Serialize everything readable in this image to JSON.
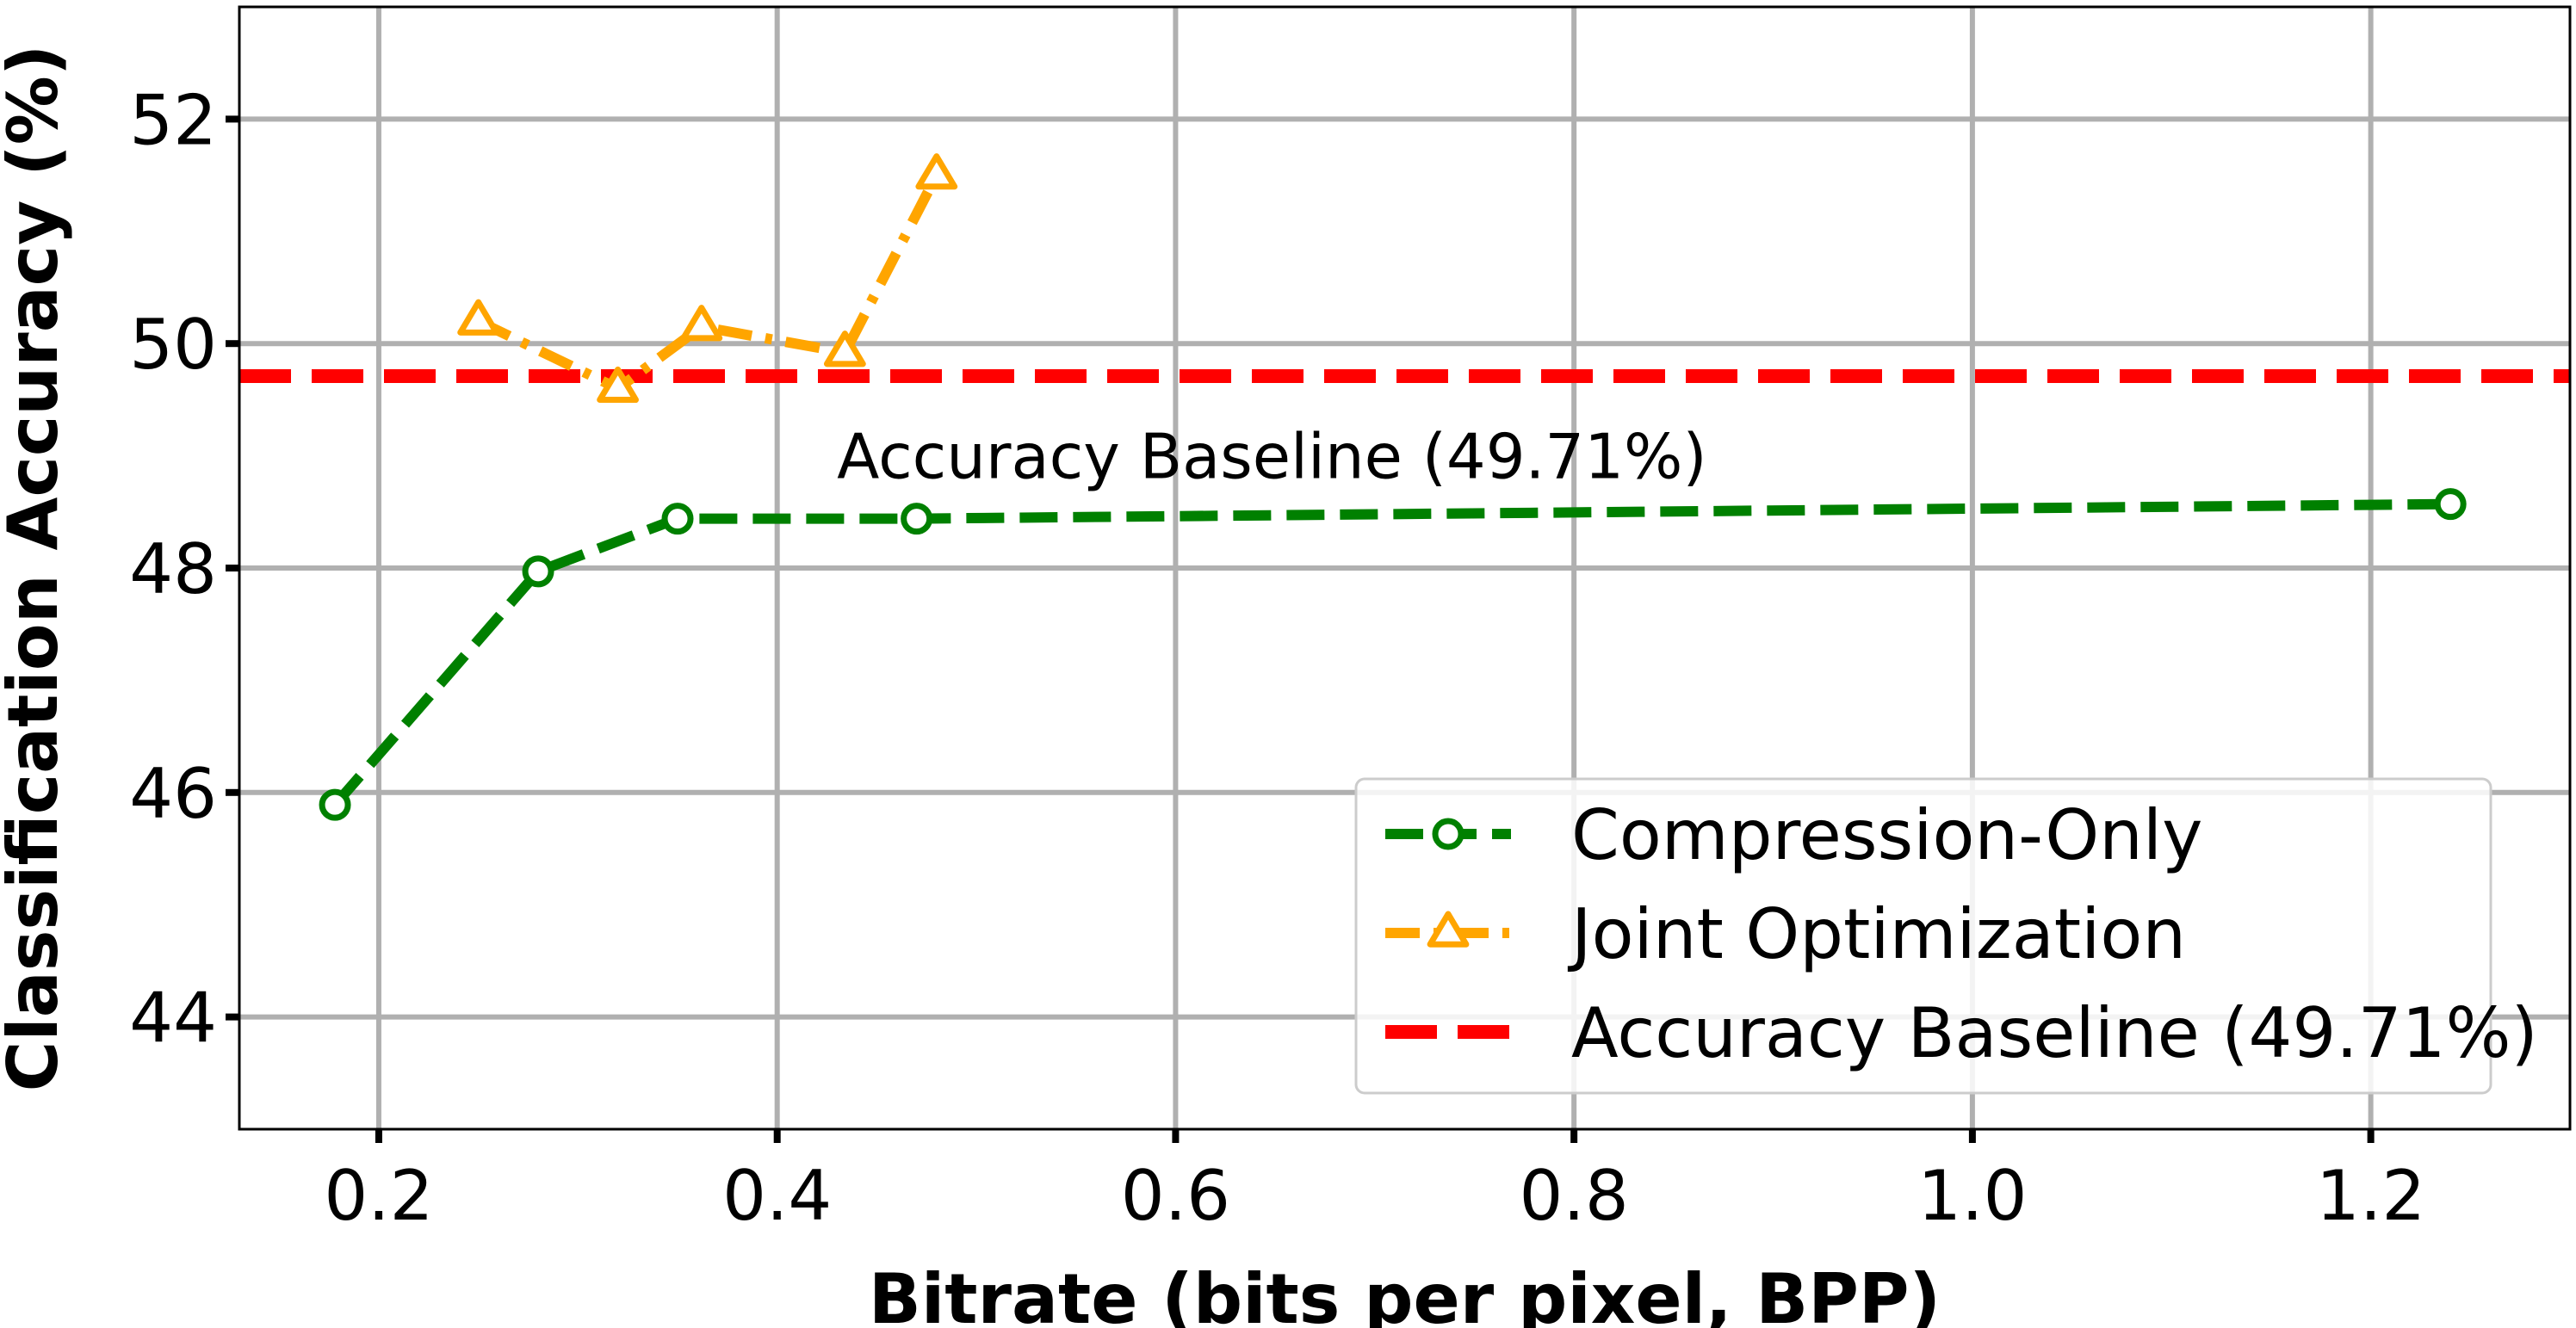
{
  "chart_data": {
    "type": "line",
    "title": "",
    "xlabel": "Bitrate (bits per pixel, BPP)",
    "ylabel": "Classification Accuracy (%)",
    "xlim": [
      0.13,
      1.3
    ],
    "ylim": [
      43.0,
      53.0
    ],
    "xticks": [
      0.2,
      0.4,
      0.6,
      0.8,
      1.0,
      1.2
    ],
    "xtick_labels": [
      "0.2",
      "0.4",
      "0.6",
      "0.8",
      "1.0",
      "1.2"
    ],
    "yticks": [
      44,
      46,
      48,
      50,
      52
    ],
    "ytick_labels": [
      "44",
      "46",
      "48",
      "50",
      "52"
    ],
    "grid": true,
    "legend_position": "bottom-right",
    "series": [
      {
        "name": "Compression-Only",
        "color": "#008000",
        "marker": "circle",
        "linestyle": "dashed",
        "x": [
          0.178,
          0.28,
          0.35,
          0.47,
          1.24
        ],
        "y": [
          45.89,
          47.97,
          48.44,
          48.44,
          48.57
        ]
      },
      {
        "name": "Joint Optimization",
        "color": "#FFA500",
        "marker": "triangle",
        "linestyle": "dashdot",
        "x": [
          0.25,
          0.32,
          0.362,
          0.434,
          0.48
        ],
        "y": [
          50.2,
          49.6,
          50.15,
          49.92,
          51.5
        ]
      }
    ],
    "baseline": {
      "name": "Accuracy Baseline (49.71%)",
      "value": 49.71,
      "color": "#FF0000",
      "linestyle": "dashed"
    },
    "annotations": [
      {
        "text": "Accuracy Baseline (49.71%)",
        "x": 0.43,
        "y": 49.0
      }
    ]
  }
}
